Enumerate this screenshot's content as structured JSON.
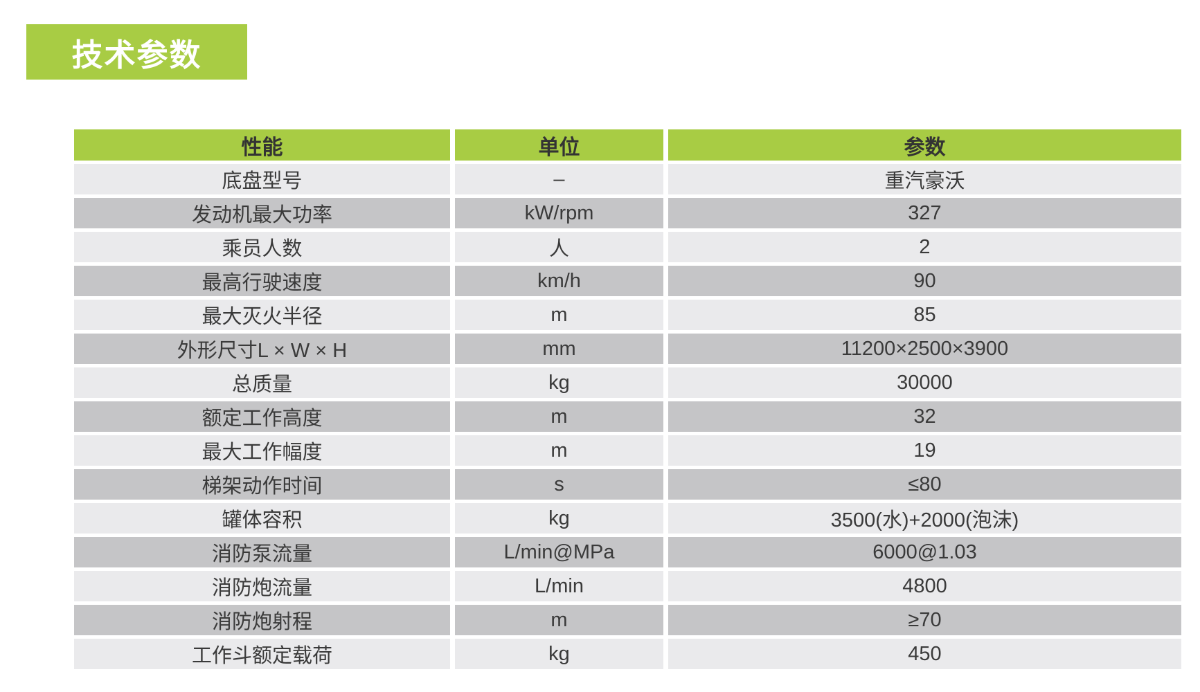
{
  "title": {
    "text": "技术参数",
    "bg_color": "#a8cc44",
    "text_color": "#ffffff"
  },
  "table": {
    "headers": [
      "性能",
      "单位",
      "参数"
    ],
    "header_bg": "#a8cc44",
    "row_light": "#eaeaec",
    "row_dark": "#c5c5c7",
    "text_color": "#3a3a3a",
    "rows": [
      [
        "底盘型号",
        "–",
        "重汽豪沃"
      ],
      [
        "发动机最大功率",
        "kW/rpm",
        "327"
      ],
      [
        "乘员人数",
        "人",
        "2"
      ],
      [
        "最高行驶速度",
        "km/h",
        "90"
      ],
      [
        "最大灭火半径",
        "m",
        "85"
      ],
      [
        "外形尺寸L × W × H",
        "mm",
        "11200×2500×3900"
      ],
      [
        "总质量",
        "kg",
        "30000"
      ],
      [
        "额定工作高度",
        "m",
        "32"
      ],
      [
        "最大工作幅度",
        "m",
        "19"
      ],
      [
        "梯架动作时间",
        "s",
        "≤80"
      ],
      [
        "罐体容积",
        "kg",
        "3500(水)+2000(泡沫)"
      ],
      [
        "消防泵流量",
        "L/min@MPa",
        "6000@1.03"
      ],
      [
        "消防炮流量",
        "L/min",
        "4800"
      ],
      [
        "消防炮射程",
        "m",
        "≥70"
      ],
      [
        "工作斗额定载荷",
        "kg",
        "450"
      ]
    ]
  }
}
